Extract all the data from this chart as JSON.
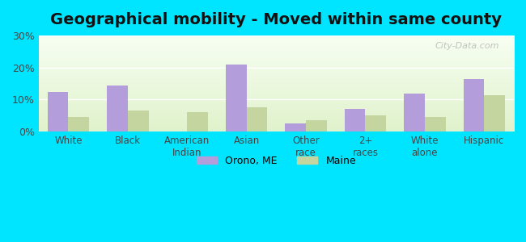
{
  "title": "Geographical mobility - Moved within same county",
  "categories": [
    "White",
    "Black",
    "American\nIndian",
    "Asian",
    "Other\nrace",
    "2+\nraces",
    "White\nalone",
    "Hispanic"
  ],
  "orono_values": [
    12.5,
    14.5,
    0,
    21.0,
    2.5,
    7.0,
    12.0,
    16.5
  ],
  "maine_values": [
    4.5,
    6.5,
    6.0,
    7.5,
    3.5,
    5.0,
    4.5,
    11.5
  ],
  "orono_color": "#b39ddb",
  "maine_color": "#c5d5a0",
  "orono_label": "Orono, ME",
  "maine_label": "Maine",
  "ylim": [
    0,
    30
  ],
  "yticks": [
    0,
    10,
    20,
    30
  ],
  "ytick_labels": [
    "0%",
    "10%",
    "20%",
    "30%"
  ],
  "background_outer": "#00e5ff",
  "title_fontsize": 14,
  "bar_width": 0.35,
  "watermark": "City-Data.com"
}
